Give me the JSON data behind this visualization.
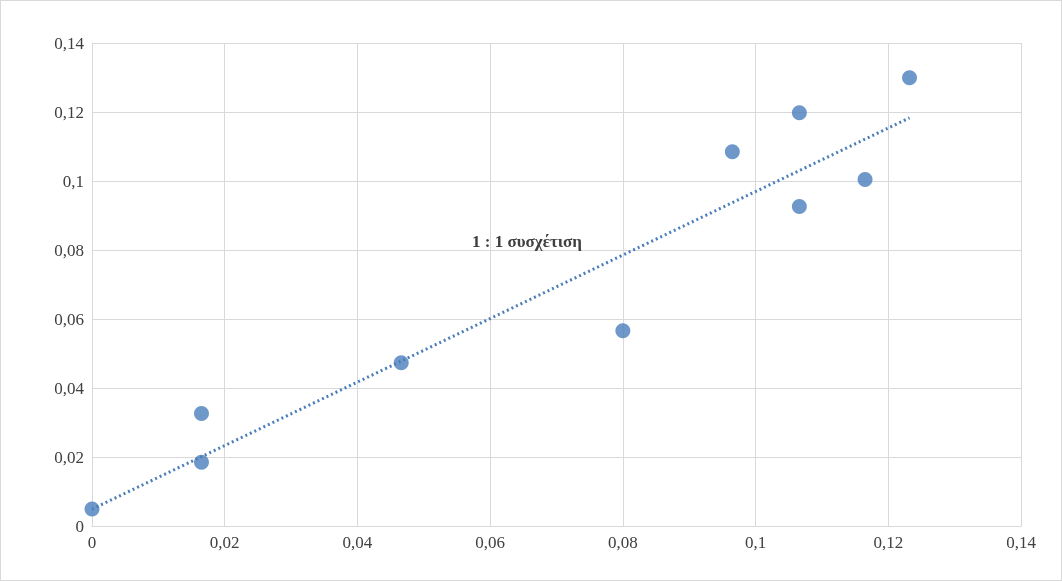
{
  "chart_data": {
    "type": "scatter",
    "xlim": [
      0,
      0.14
    ],
    "xticks": [
      0,
      {
        "value": 0.02,
        "label": "0,02"
      },
      {
        "value": 0.04,
        "label": "0,04"
      },
      {
        "value": 0.06,
        "label": "0,06"
      },
      {
        "value": 0.08,
        "label": "0,08"
      },
      {
        "value": 0.1,
        "label": "0,1"
      },
      {
        "value": 0.12,
        "label": "0,12"
      },
      {
        "value": 0.14,
        "label": "0,14"
      }
    ],
    "ylim": [
      0,
      0.14
    ],
    "yticks": [
      0,
      {
        "value": 0.02,
        "label": "0,02"
      },
      {
        "value": 0.04,
        "label": "0,04"
      },
      {
        "value": 0.06,
        "label": "0,06"
      },
      {
        "value": 0.08,
        "label": "0,08"
      },
      {
        "value": 0.1,
        "label": "0,1"
      },
      {
        "value": 0.12,
        "label": "0,12"
      },
      {
        "value": 0.14,
        "label": "0,14"
      }
    ],
    "grid": true,
    "marker": "circle",
    "series": [
      {
        "color": "#4a7ebb",
        "x": [
          0,
          0.0165,
          0.0165,
          0.0466,
          0.08,
          0.0965,
          0.1066,
          0.1066,
          0.1165,
          0.1232
        ],
        "values": [
          0.0049,
          0.0326,
          0.0185,
          0.0473,
          0.0566,
          0.1085,
          0.1198,
          0.0926,
          0.1004,
          0.1299
        ]
      },
      {
        "type": "line",
        "color": "#4a7ebb",
        "marker": "none",
        "line_style": "dotted",
        "x": [
          0,
          0.1232
        ],
        "values": [
          0.0049,
          0.1183
        ]
      }
    ],
    "annotations": [
      "1 : 1 συσχέτιση"
    ]
  }
}
